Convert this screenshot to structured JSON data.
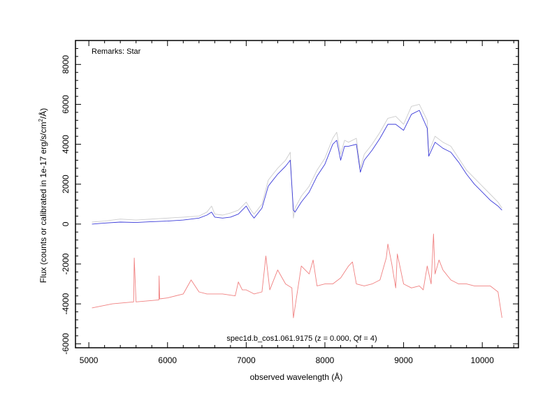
{
  "chart_data": {
    "type": "line",
    "xlabel": "observed wavelength (Å)",
    "ylabel": "Flux (counts or calibrated in 1e-17 erg/s/cm",
    "ylabel_sup": "2",
    "ylabel_tail": "/Å)",
    "xlim": [
      4830,
      10460
    ],
    "ylim": [
      -6200,
      9200
    ],
    "x_ticks": [
      5000,
      6000,
      7000,
      8000,
      9000,
      10000
    ],
    "x_tick_labels": [
      "5000",
      "6000",
      "7000",
      "8000",
      "9000",
      "10000"
    ],
    "y_ticks": [
      -6000,
      -4000,
      -2000,
      0,
      2000,
      4000,
      6000,
      8000
    ],
    "y_tick_labels": [
      "-6000",
      "-4000",
      "-2000",
      "0",
      "2000",
      "4000",
      "6000",
      "8000"
    ],
    "grid": false,
    "annotations": {
      "remarks": "Remarks: Star",
      "object": "spec1d.b_cos1.061.9175 (z = 0.000, Qf = 4)"
    },
    "series": [
      {
        "color": "#cccccc",
        "role": "raw-spectrum",
        "x": [
          5040,
          5200,
          5400,
          5600,
          5800,
          6000,
          6200,
          6400,
          6500,
          6560,
          6600,
          6700,
          6800,
          6900,
          7000,
          7060,
          7100,
          7200,
          7280,
          7300,
          7400,
          7500,
          7560,
          7600,
          7620,
          7700,
          7800,
          7900,
          8000,
          8100,
          8150,
          8200,
          8250,
          8300,
          8400,
          8450,
          8500,
          8600,
          8700,
          8800,
          8900,
          9000,
          9100,
          9200,
          9300,
          9320,
          9400,
          9500,
          9600,
          9700,
          9800,
          9900,
          10000,
          10100,
          10200,
          10250
        ],
        "y": [
          100,
          150,
          250,
          200,
          250,
          300,
          350,
          400,
          600,
          900,
          500,
          450,
          550,
          700,
          1100,
          700,
          500,
          1000,
          2200,
          2300,
          2800,
          3200,
          3600,
          300,
          800,
          1400,
          1900,
          2700,
          3300,
          4300,
          4600,
          3500,
          4200,
          4100,
          4300,
          2800,
          3500,
          4000,
          4600,
          5300,
          5400,
          5000,
          5900,
          6000,
          5200,
          3600,
          4400,
          4100,
          3900,
          3300,
          2700,
          2300,
          1900,
          1500,
          1100,
          800
        ]
      },
      {
        "color": "#3b3bd9",
        "role": "smoothed-spectrum",
        "x": [
          5040,
          5200,
          5400,
          5600,
          5800,
          6000,
          6200,
          6400,
          6500,
          6560,
          6600,
          6700,
          6800,
          6900,
          7000,
          7060,
          7100,
          7200,
          7280,
          7300,
          7400,
          7500,
          7560,
          7600,
          7620,
          7700,
          7800,
          7900,
          8000,
          8100,
          8150,
          8200,
          8250,
          8300,
          8400,
          8450,
          8500,
          8600,
          8700,
          8800,
          8900,
          9000,
          9100,
          9200,
          9300,
          9320,
          9400,
          9500,
          9600,
          9700,
          9800,
          9900,
          10000,
          10100,
          10200,
          10250
        ],
        "y": [
          0,
          50,
          100,
          80,
          120,
          150,
          200,
          300,
          450,
          600,
          350,
          300,
          350,
          500,
          900,
          500,
          300,
          800,
          1900,
          2000,
          2500,
          2900,
          3200,
          700,
          600,
          1100,
          1600,
          2400,
          3000,
          4000,
          4200,
          3200,
          3900,
          3900,
          4000,
          2600,
          3200,
          3700,
          4300,
          5000,
          5000,
          4700,
          5500,
          5700,
          4800,
          3400,
          4100,
          3800,
          3600,
          3100,
          2500,
          2000,
          1600,
          1200,
          900,
          700
        ]
      },
      {
        "color": "#f08080",
        "role": "sky-spectrum",
        "x": [
          5040,
          5300,
          5570,
          5577,
          5600,
          5890,
          5893,
          5900,
          6000,
          6200,
          6300,
          6400,
          6500,
          6700,
          6860,
          6900,
          6950,
          7000,
          7100,
          7200,
          7250,
          7300,
          7400,
          7500,
          7580,
          7600,
          7700,
          7800,
          7850,
          7900,
          8000,
          8100,
          8200,
          8300,
          8350,
          8400,
          8500,
          8600,
          8700,
          8780,
          8800,
          8850,
          8900,
          8920,
          9000,
          9100,
          9200,
          9250,
          9300,
          9350,
          9380,
          9400,
          9450,
          9500,
          9600,
          9700,
          9800,
          9900,
          10000,
          10100,
          10200,
          10250
        ],
        "y": [
          -4200,
          -4000,
          -3900,
          -1700,
          -3900,
          -3800,
          -2600,
          -3750,
          -3700,
          -3500,
          -2800,
          -3400,
          -3500,
          -3500,
          -3600,
          -2900,
          -3300,
          -3300,
          -3500,
          -3400,
          -1600,
          -3300,
          -2300,
          -3000,
          -3200,
          -4700,
          -2100,
          -2500,
          -1800,
          -3100,
          -3000,
          -3000,
          -2700,
          -2100,
          -1900,
          -3000,
          -3100,
          -3000,
          -2800,
          -1700,
          -1000,
          -2000,
          -3200,
          -1500,
          -3000,
          -3200,
          -3100,
          -3300,
          -2100,
          -3000,
          -500,
          -2500,
          -1800,
          -2300,
          -2800,
          -3000,
          -3000,
          -3100,
          -3100,
          -3100,
          -3400,
          -4700
        ]
      }
    ]
  }
}
